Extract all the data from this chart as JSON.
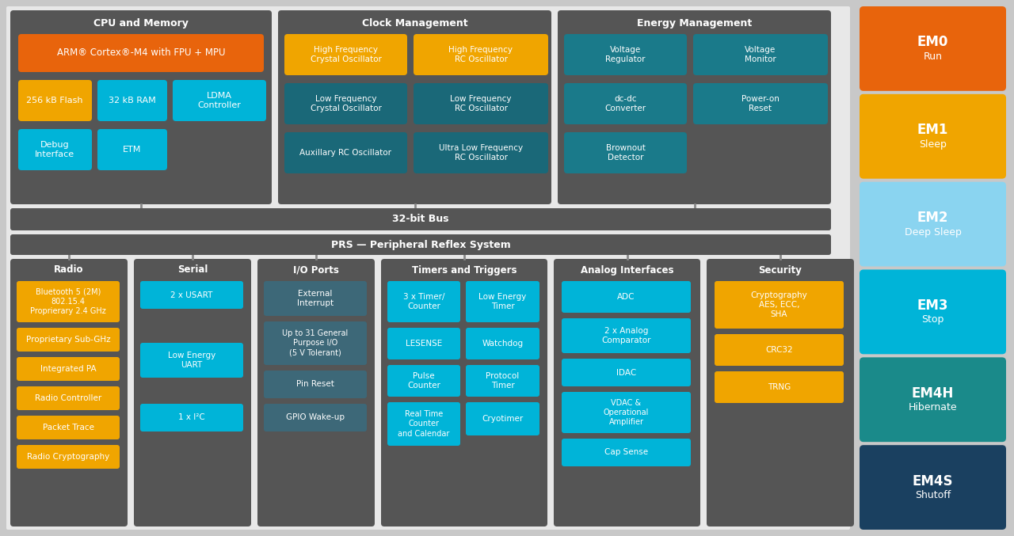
{
  "bg_main": "#c8c8c8",
  "bg_white": "#f5f5f5",
  "dark_section": "#555555",
  "orange": "#e8640c",
  "yellow": "#f0a500",
  "cyan_bright": "#00b4d8",
  "teal_dark": "#1a6878",
  "teal_mid": "#1a7a8a",
  "navy": "#1a3a5a",
  "em_modes": [
    {
      "line1": "EM0",
      "line2": "Run",
      "color": "#e8640c"
    },
    {
      "line1": "EM1",
      "line2": "Sleep",
      "color": "#f0a500"
    },
    {
      "line1": "EM2",
      "line2": "Deep Sleep",
      "color": "#8ad4f0"
    },
    {
      "line1": "EM3",
      "line2": "Stop",
      "color": "#00b4d8"
    },
    {
      "line1": "EM4H",
      "line2": "Hibernate",
      "color": "#1a8a8a"
    },
    {
      "line1": "EM4S",
      "line2": "Shutoff",
      "color": "#1a4060"
    }
  ]
}
